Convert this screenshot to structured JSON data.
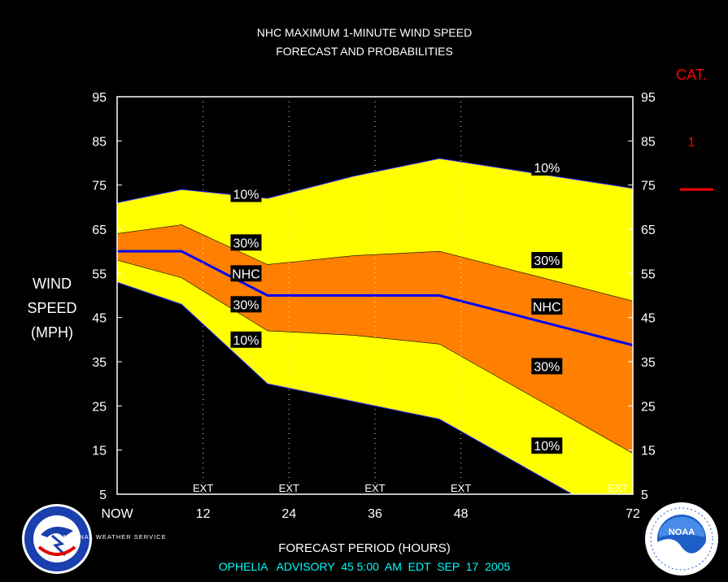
{
  "chart_data": {
    "type": "area",
    "title": "NHC MAXIMUM 1-MINUTE WIND SPEED",
    "subtitle": "FORECAST AND PROBABILITIES",
    "ylabel_lines": [
      "WIND",
      "SPEED",
      "(MPH)"
    ],
    "xlabel": "FORECAST PERIOD (HOURS)",
    "advisory": "OPHELIA   ADVISORY  45 5:00  AM  EDT  SEP  17  2005",
    "category_header": "CAT.",
    "category_label": "1",
    "category_threshold_mph": 74,
    "ylim": [
      5,
      95
    ],
    "xlim": [
      0,
      72
    ],
    "yticks": [
      5,
      15,
      25,
      35,
      45,
      55,
      65,
      75,
      85,
      95
    ],
    "xticks": [
      {
        "x": 0,
        "label": "NOW"
      },
      {
        "x": 12,
        "label": "12"
      },
      {
        "x": 24,
        "label": "24"
      },
      {
        "x": 36,
        "label": "36"
      },
      {
        "x": 48,
        "label": "48"
      },
      {
        "x": 72,
        "label": "72"
      }
    ],
    "ext_markers": [
      12,
      24,
      36,
      48,
      72
    ],
    "ext_label": "EXT",
    "x": [
      0,
      9,
      21,
      33,
      45,
      57
    ],
    "series": [
      {
        "name": "10%",
        "values": [
          71,
          74,
          72,
          77,
          81,
          78
        ],
        "color": "#ffff00"
      },
      {
        "name": "30%",
        "values": [
          64,
          66,
          57,
          59,
          60,
          55
        ],
        "color": "#ff8000"
      },
      {
        "name": "NHC",
        "values": [
          60,
          60,
          50,
          50,
          50,
          45
        ],
        "color": "#0000ff"
      },
      {
        "name": "30%",
        "values": [
          58,
          54,
          42,
          41,
          39,
          28
        ]
      },
      {
        "name": "10%",
        "values": [
          53,
          48,
          30,
          26,
          22,
          11
        ]
      }
    ],
    "band_labels": [
      {
        "text": "10%",
        "x": 18,
        "y": 73
      },
      {
        "text": "30%",
        "x": 18,
        "y": 62
      },
      {
        "text": "NHC",
        "x": 18,
        "y": 55
      },
      {
        "text": "30%",
        "x": 18,
        "y": 48
      },
      {
        "text": "10%",
        "x": 18,
        "y": 40
      },
      {
        "text": "10%",
        "x": 60,
        "y": 79
      },
      {
        "text": "30%",
        "x": 60,
        "y": 58
      },
      {
        "text": "NHC",
        "x": 60,
        "y": 47.5
      },
      {
        "text": "30%",
        "x": 60,
        "y": 34
      },
      {
        "text": "10%",
        "x": 60,
        "y": 16
      }
    ],
    "colors": {
      "background": "#000000",
      "outer_band": "#ffff00",
      "inner_band": "#ff8000",
      "nhc_line": "#0000ff",
      "plot_border": "#ffffff",
      "category": "#ff0000",
      "advisory_text": "#00ffff",
      "text": "#ffffff"
    }
  },
  "logos": {
    "left": {
      "text": "NATIONAL WEATHER SERVICE",
      "icon": "nws-logo-icon"
    },
    "right": {
      "text": "NOAA",
      "icon": "noaa-logo-icon"
    }
  }
}
